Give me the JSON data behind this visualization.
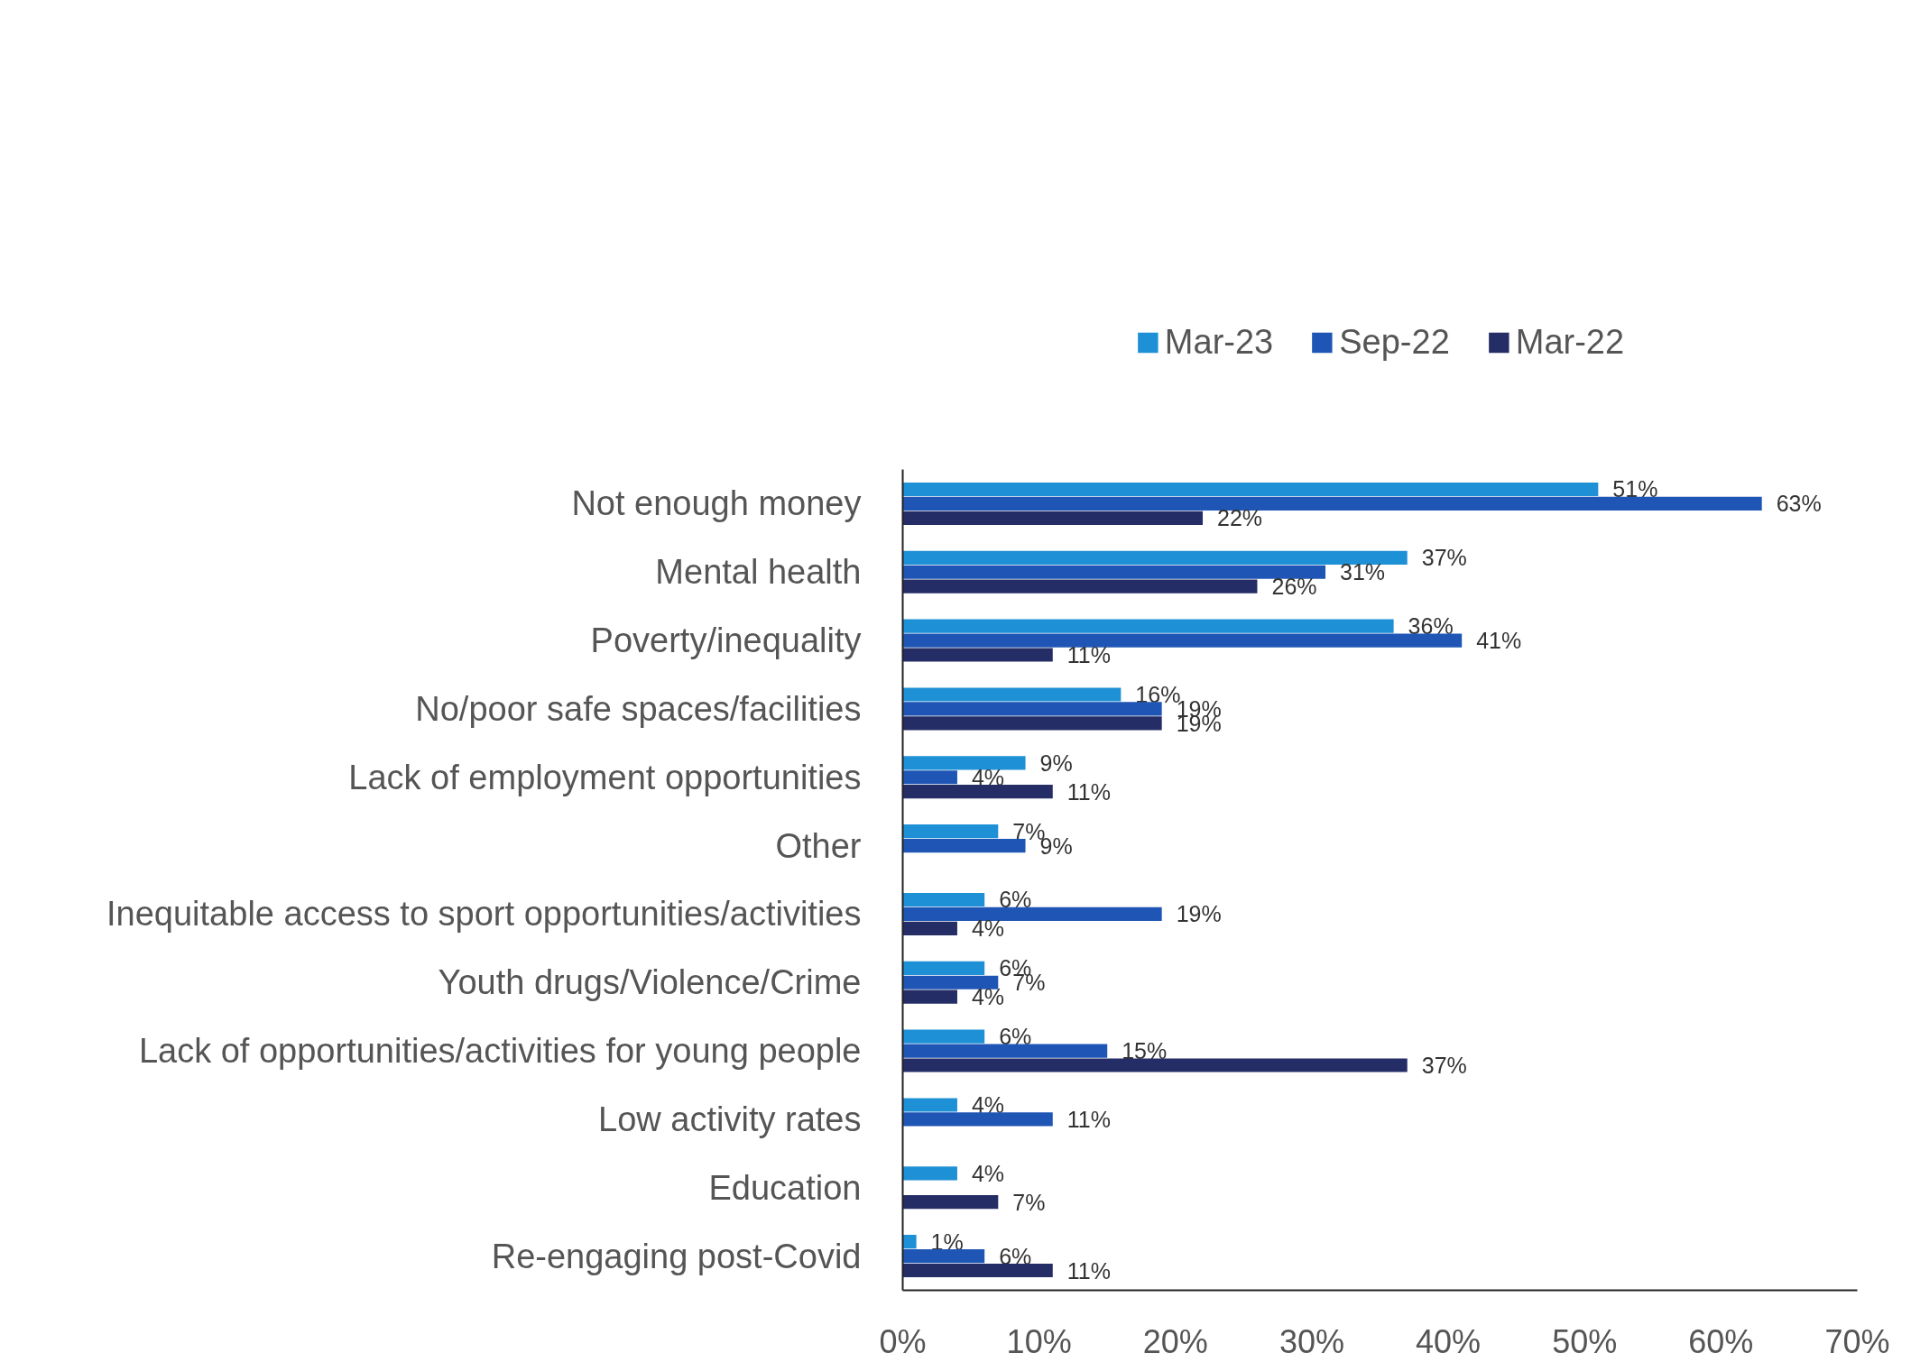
{
  "chart_data": {
    "type": "bar",
    "orientation": "horizontal",
    "categories": [
      "Not enough money",
      "Mental health",
      "Poverty/inequality",
      "No/poor safe spaces/facilities",
      "Lack of employment opportunities",
      "Other",
      "Inequitable access to sport opportunities/activities",
      "Youth drugs/Violence/Crime",
      "Lack of opportunities/activities for young people",
      "Low activity rates",
      "Education",
      "Re-engaging post-Covid"
    ],
    "series": [
      {
        "name": "Mar-23",
        "color": "#1e90d6",
        "values": [
          51,
          37,
          36,
          16,
          9,
          7,
          6,
          6,
          6,
          4,
          4,
          1
        ],
        "value_labels": [
          "51%",
          "37%",
          "36%",
          "16%",
          "9%",
          "7%",
          "6%",
          "6%",
          "6%",
          "4%",
          "4%",
          "1%"
        ]
      },
      {
        "name": "Sep-22",
        "color": "#1f56b5",
        "values": [
          63,
          31,
          41,
          19,
          4,
          9,
          19,
          7,
          15,
          11,
          null,
          6
        ],
        "value_labels": [
          "63%",
          "31%",
          "41%",
          "19%",
          "4%",
          "9%",
          "19%",
          "7%",
          "15%",
          "11%",
          null,
          "6%"
        ]
      },
      {
        "name": "Mar-22",
        "color": "#252d66",
        "values": [
          22,
          26,
          11,
          19,
          11,
          null,
          4,
          4,
          37,
          null,
          7,
          11
        ],
        "value_labels": [
          "22%",
          "26%",
          "11%",
          "19%",
          "11%",
          null,
          "4%",
          "4%",
          "37%",
          null,
          "7%",
          "11%"
        ]
      }
    ],
    "xlim": [
      0,
      70
    ],
    "xticks": [
      {
        "value": 0,
        "label": "0%"
      },
      {
        "value": 10,
        "label": "10%"
      },
      {
        "value": 20,
        "label": "20%"
      },
      {
        "value": 30,
        "label": "30%"
      },
      {
        "value": 40,
        "label": "40%"
      },
      {
        "value": 50,
        "label": "50%"
      },
      {
        "value": 60,
        "label": "60%"
      },
      {
        "value": 70,
        "label": "70%"
      }
    ],
    "grid": false,
    "legend": "top"
  }
}
